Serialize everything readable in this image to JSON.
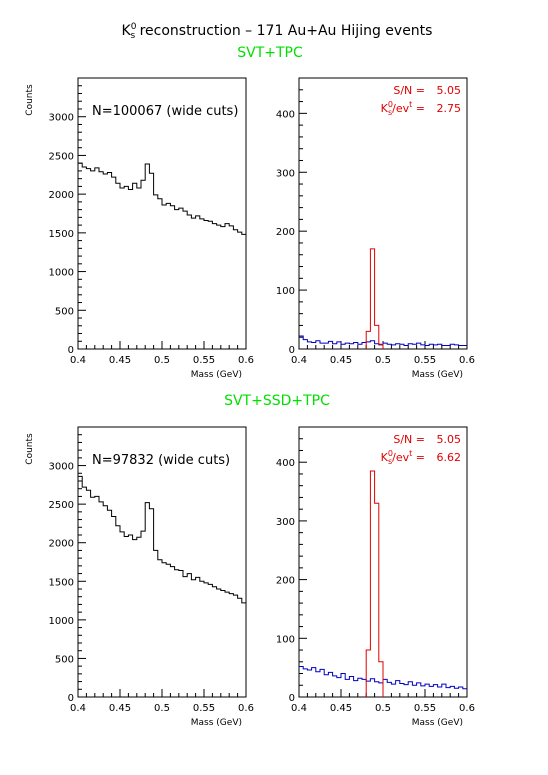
{
  "page": {
    "title": "K⁰ₛ reconstruction – 171 Au+Au Hijing events",
    "title_main": "K",
    "title_sup": "0",
    "title_sub": "s",
    "title_rest": " reconstruction – 171 Au+Au Hijing events",
    "section_top": "SVT+TPC",
    "section_bottom": "SVT+SSD+TPC",
    "accent_green": "#00e000",
    "signal_red": "#e00000",
    "background_blue": "#0000c0"
  },
  "chart_data": [
    {
      "type": "step-histogram",
      "panel": "top-left",
      "ylabel": "Counts",
      "xlabel": "Mass (GeV)",
      "xlim": [
        0.4,
        0.6
      ],
      "ylim": [
        0,
        3500
      ],
      "xticks": [
        0.4,
        0.45,
        0.5,
        0.55,
        0.6
      ],
      "xtick_labels": [
        "0.4",
        "0.45",
        "0.5",
        "0.55",
        "0.6"
      ],
      "yticks": [
        0,
        500,
        1000,
        1500,
        2000,
        2500,
        3000
      ],
      "ytick_labels": [
        "0",
        "500",
        "1000",
        "1500",
        "2000",
        "2500",
        "3000"
      ],
      "annotation": "N=100067 (wide cuts)",
      "series": [
        {
          "color": "#000000",
          "x_start": 0.4,
          "bin_width": 0.005,
          "values": [
            2400,
            2350,
            2330,
            2300,
            2340,
            2290,
            2260,
            2280,
            2220,
            2140,
            2080,
            2100,
            2060,
            2140,
            2080,
            2180,
            2390,
            2270,
            1990,
            1940,
            1860,
            1880,
            1850,
            1800,
            1820,
            1780,
            1730,
            1690,
            1720,
            1680,
            1660,
            1650,
            1620,
            1600,
            1580,
            1620,
            1590,
            1540,
            1510,
            1480
          ]
        }
      ]
    },
    {
      "type": "step-histogram",
      "panel": "top-right",
      "ylabel": "",
      "xlabel": "Mass (GeV)",
      "xlim": [
        0.4,
        0.6
      ],
      "ylim": [
        0,
        460
      ],
      "xticks": [
        0.4,
        0.45,
        0.5,
        0.55,
        0.6
      ],
      "xtick_labels": [
        "0.4",
        "0.45",
        "0.5",
        "0.55",
        "0.6"
      ],
      "yticks": [
        0,
        100,
        200,
        300,
        400
      ],
      "ytick_labels": [
        "0",
        "100",
        "200",
        "300",
        "400"
      ],
      "annotation_lines": [
        {
          "label": "S/N =",
          "value": "5.05"
        },
        {
          "label": "K⁰ₛ/evᵗ =",
          "value": "2.75",
          "main": "K",
          "sup": "0",
          "sub": "s",
          "tail": "/ev",
          "tail_sup": "t",
          "eq": " ="
        }
      ],
      "series": [
        {
          "name": "background",
          "color": "#0000c0",
          "x_start": 0.4,
          "bin_width": 0.005,
          "values": [
            22,
            16,
            12,
            11,
            14,
            10,
            10,
            13,
            9,
            12,
            8,
            10,
            9,
            11,
            8,
            11,
            12,
            14,
            9,
            7,
            10,
            8,
            7,
            9,
            8,
            6,
            9,
            8,
            10,
            7,
            6,
            8,
            7,
            8,
            6,
            6,
            8,
            7,
            6,
            6
          ]
        },
        {
          "name": "signal",
          "color": "#e00000",
          "x_start": 0.48,
          "bin_width": 0.005,
          "values": [
            30,
            170,
            40,
            8
          ]
        }
      ]
    },
    {
      "type": "step-histogram",
      "panel": "bottom-left",
      "ylabel": "Counts",
      "xlabel": "Mass (GeV)",
      "xlim": [
        0.4,
        0.6
      ],
      "ylim": [
        0,
        3500
      ],
      "xticks": [
        0.4,
        0.45,
        0.5,
        0.55,
        0.6
      ],
      "xtick_labels": [
        "0.4",
        "0.45",
        "0.5",
        "0.55",
        "0.6"
      ],
      "yticks": [
        0,
        500,
        1000,
        1500,
        2000,
        2500,
        3000
      ],
      "ytick_labels": [
        "0",
        "500",
        "1000",
        "1500",
        "2000",
        "2500",
        "3000"
      ],
      "annotation": "N=97832 (wide cuts)",
      "series": [
        {
          "color": "#000000",
          "x_start": 0.4,
          "bin_width": 0.005,
          "values": [
            2860,
            2720,
            2680,
            2590,
            2600,
            2530,
            2480,
            2420,
            2340,
            2220,
            2140,
            2080,
            2100,
            2040,
            2070,
            2150,
            2520,
            2440,
            1900,
            1780,
            1740,
            1720,
            1690,
            1650,
            1640,
            1560,
            1600,
            1520,
            1550,
            1500,
            1480,
            1460,
            1430,
            1400,
            1380,
            1360,
            1340,
            1320,
            1280,
            1220
          ]
        }
      ]
    },
    {
      "type": "step-histogram",
      "panel": "bottom-right",
      "ylabel": "",
      "xlabel": "Mass (GeV)",
      "xlim": [
        0.4,
        0.6
      ],
      "ylim": [
        0,
        460
      ],
      "xticks": [
        0.4,
        0.45,
        0.5,
        0.55,
        0.6
      ],
      "xtick_labels": [
        "0.4",
        "0.45",
        "0.5",
        "0.55",
        "0.6"
      ],
      "yticks": [
        0,
        100,
        200,
        300,
        400
      ],
      "ytick_labels": [
        "0",
        "100",
        "200",
        "300",
        "400"
      ],
      "annotation_lines": [
        {
          "label": "S/N =",
          "value": "5.05"
        },
        {
          "label": "K⁰ₛ/evᵗ =",
          "value": "6.62",
          "main": "K",
          "sup": "0",
          "sub": "s",
          "tail": "/ev",
          "tail_sup": "t",
          "eq": " ="
        }
      ],
      "series": [
        {
          "name": "background",
          "color": "#0000c0",
          "x_start": 0.4,
          "bin_width": 0.005,
          "values": [
            52,
            48,
            46,
            50,
            43,
            47,
            38,
            42,
            36,
            33,
            40,
            30,
            35,
            28,
            32,
            30,
            27,
            31,
            26,
            24,
            30,
            25,
            22,
            28,
            23,
            21,
            26,
            20,
            24,
            19,
            22,
            18,
            21,
            17,
            22,
            16,
            18,
            15,
            17,
            14
          ]
        },
        {
          "name": "signal",
          "color": "#e00000",
          "x_start": 0.48,
          "bin_width": 0.005,
          "values": [
            80,
            385,
            330,
            60
          ]
        }
      ]
    }
  ]
}
